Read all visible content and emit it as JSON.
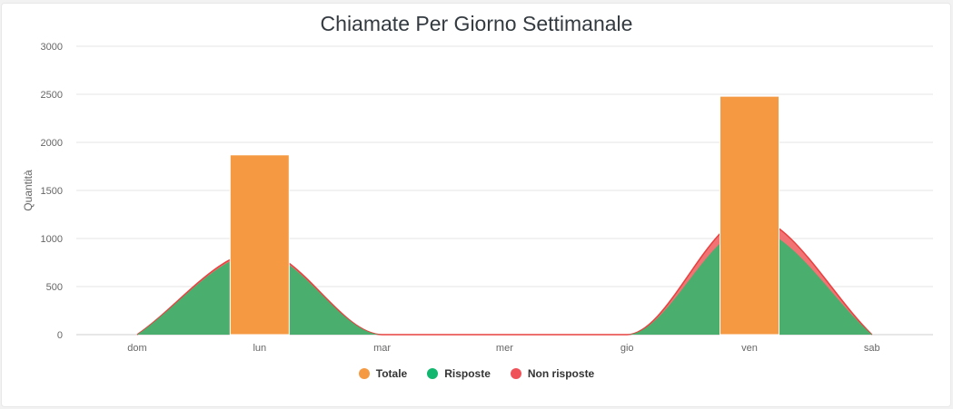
{
  "chart_data": {
    "type": "bar",
    "title": "Chiamate Per Giorno Settimanale",
    "ylabel": "Quantità",
    "xlabel": "",
    "categories": [
      "dom",
      "lun",
      "mar",
      "mer",
      "gio",
      "ven",
      "sab"
    ],
    "ylim": [
      0,
      3000
    ],
    "yticks": [
      0,
      500,
      1000,
      1500,
      2000,
      2500,
      3000
    ],
    "grid": true,
    "legend_position": "bottom",
    "series": [
      {
        "name": "Totale",
        "kind": "bar",
        "color": "#f59a42",
        "values": [
          0,
          1870,
          0,
          0,
          0,
          2480,
          0
        ]
      },
      {
        "name": "Risposte",
        "kind": "area",
        "color": "#4aae6e",
        "values": [
          0,
          850,
          0,
          0,
          0,
          1110,
          0
        ]
      },
      {
        "name": "Non risposte",
        "kind": "area-stacked",
        "color": "#f05a5a",
        "values": [
          0,
          20,
          0,
          0,
          0,
          120,
          0
        ]
      }
    ]
  },
  "legend": {
    "totale": "Totale",
    "risposte": "Risposte",
    "non_risposte": "Non risposte",
    "colors": {
      "totale": "#f59a42",
      "risposte": "#13b66e",
      "non_risposte": "#f0525a"
    }
  }
}
